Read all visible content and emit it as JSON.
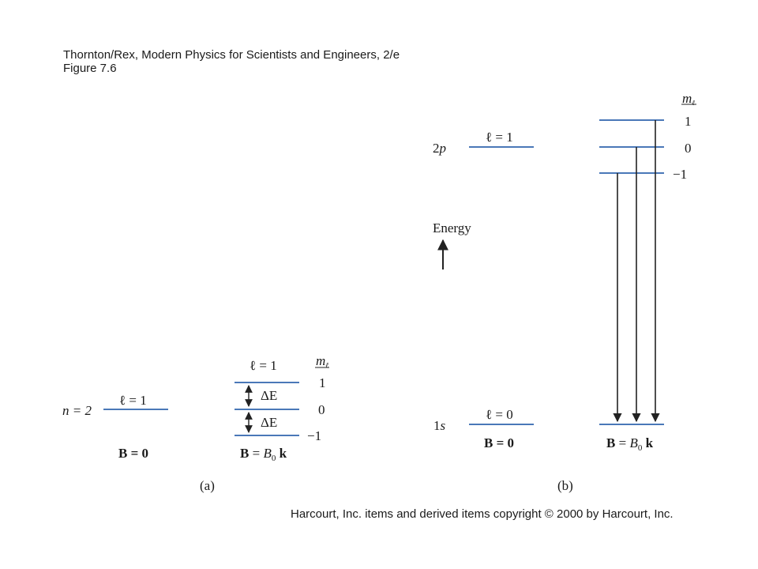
{
  "header": {
    "line1": "Thornton/Rex, Modern Physics for Scientists and Engineers, 2/e",
    "line2": "Figure 7.6"
  },
  "footer": {
    "copyright": "Harcourt, Inc. items and derived items copyright © 2000 by Harcourt, Inc."
  },
  "panel_a": {
    "caption": "(a)",
    "left_state": {
      "n_label": "n = 2",
      "l_label": "ℓ = 1",
      "field_label": "B = 0"
    },
    "right_state": {
      "l_label": "ℓ = 1",
      "ml_header": "m",
      "ml_values": [
        "1",
        "0",
        "−1"
      ],
      "delta_labels": [
        "ΔE",
        "ΔE"
      ],
      "field_B": "B",
      "field_eq": "= ",
      "field_B0": "B",
      "field_B0_sub": "0",
      "field_k": "k"
    }
  },
  "panel_b": {
    "caption": "(b)",
    "energy_label": "Energy",
    "upper_state": {
      "label_num": "2",
      "label_letter": "p",
      "l_label": "ℓ = 1"
    },
    "lower_state": {
      "label_num": "1",
      "label_letter": "s",
      "l_label": "ℓ = 0",
      "field_label": "B = 0"
    },
    "ml_header": "m",
    "ml_values": [
      "1",
      "0",
      "−1"
    ],
    "field_B": "B",
    "field_eq": "= ",
    "field_B0": "B",
    "field_B0_sub": "0",
    "field_k": "k"
  },
  "colors": {
    "level_line": "#4a78b8",
    "arrow": "#222222",
    "text": "#1a1a1a"
  }
}
